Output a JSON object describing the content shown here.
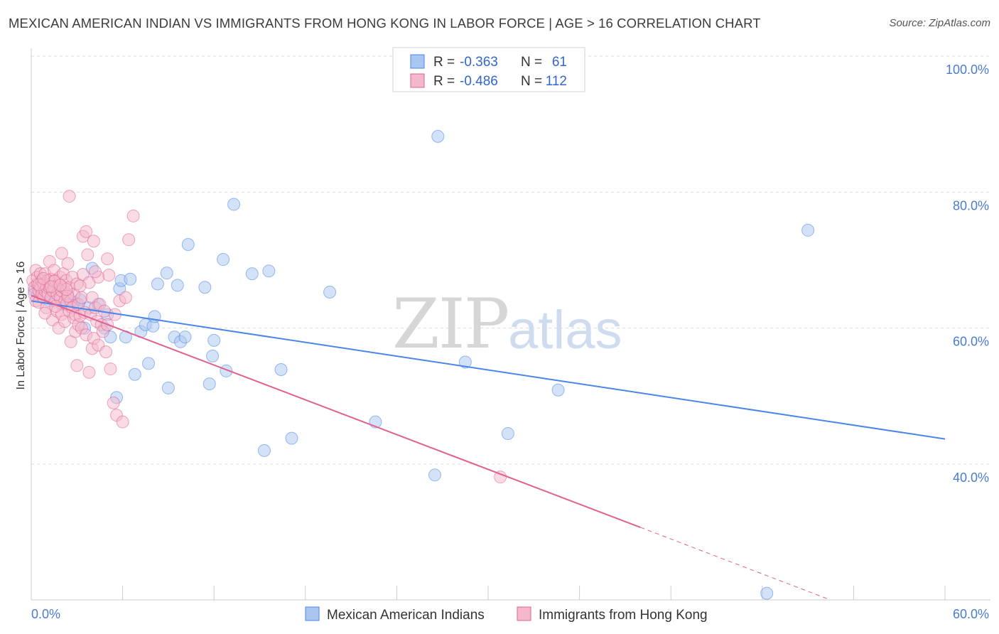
{
  "title": "MEXICAN AMERICAN INDIAN VS IMMIGRANTS FROM HONG KONG IN LABOR FORCE | AGE > 16 CORRELATION CHART",
  "source": "Source: ZipAtlas.com",
  "watermark": {
    "zip": "ZIP",
    "atlas": "atlas"
  },
  "chart_data": {
    "type": "scatter",
    "title": "MEXICAN AMERICAN INDIAN VS IMMIGRANTS FROM HONG KONG IN LABOR FORCE | AGE > 16 CORRELATION CHART",
    "xlabel": "",
    "ylabel": "In Labor Force | Age > 16",
    "xlim": [
      0,
      60
    ],
    "ylim": [
      20,
      104
    ],
    "x_tick_labels": [
      "0.0%",
      "60.0%"
    ],
    "y_ticks": [
      40,
      60,
      80,
      100
    ],
    "y_tick_labels": [
      "40.0%",
      "60.0%",
      "80.0%",
      "100.0%"
    ],
    "grid": true,
    "legend_top": [
      {
        "r_label": "R = ",
        "r_value": "-0.363",
        "n_label": "N = ",
        "n_value": "61"
      },
      {
        "r_label": "R = ",
        "r_value": "-0.486",
        "n_label": "N = ",
        "n_value": "112"
      }
    ],
    "series": [
      {
        "name": "Mexican American Indians",
        "color": "#4a86e8",
        "fill": "#a9c6f0",
        "trend": {
          "x0": 0,
          "y0": 64.0,
          "x1": 60,
          "y1": 43.7
        },
        "points": [
          [
            0.2,
            65.5
          ],
          [
            0.4,
            65
          ],
          [
            0.6,
            66
          ],
          [
            0.8,
            64.5
          ],
          [
            1.0,
            66.5
          ],
          [
            1.2,
            64
          ],
          [
            1.5,
            65.5
          ],
          [
            1.7,
            66.2
          ],
          [
            2.0,
            63.5
          ],
          [
            2.2,
            65
          ],
          [
            2.5,
            64
          ],
          [
            2.8,
            63.8
          ],
          [
            3.0,
            63.5
          ],
          [
            3.2,
            64.2
          ],
          [
            3.5,
            60
          ],
          [
            3.8,
            63
          ],
          [
            4.0,
            68.8
          ],
          [
            4.4,
            63.5
          ],
          [
            4.8,
            60
          ],
          [
            5.0,
            62
          ],
          [
            5.2,
            58.7
          ],
          [
            5.8,
            65.8
          ],
          [
            5.9,
            67
          ],
          [
            5.6,
            49.8
          ],
          [
            6.2,
            58.7
          ],
          [
            6.5,
            67.2
          ],
          [
            6.8,
            53.2
          ],
          [
            7.2,
            59.5
          ],
          [
            7.5,
            60.5
          ],
          [
            7.7,
            54.8
          ],
          [
            8.0,
            60.3
          ],
          [
            8.1,
            61.7
          ],
          [
            8.3,
            66.5
          ],
          [
            8.9,
            68.1
          ],
          [
            9.0,
            51.2
          ],
          [
            9.4,
            58.7
          ],
          [
            9.6,
            66.3
          ],
          [
            9.8,
            58
          ],
          [
            10.1,
            58.7
          ],
          [
            10.3,
            72.3
          ],
          [
            11.4,
            66
          ],
          [
            11.7,
            51.8
          ],
          [
            11.9,
            55.9
          ],
          [
            12.0,
            58.2
          ],
          [
            12.6,
            70.1
          ],
          [
            12.8,
            53.7
          ],
          [
            13.3,
            78.2
          ],
          [
            14.5,
            68
          ],
          [
            15.3,
            42
          ],
          [
            15.6,
            68.4
          ],
          [
            16.4,
            53.9
          ],
          [
            17.1,
            43.8
          ],
          [
            19.6,
            65.3
          ],
          [
            22.6,
            46.2
          ],
          [
            26.5,
            38.4
          ],
          [
            26.7,
            88.2
          ],
          [
            28.5,
            55
          ],
          [
            31.3,
            44.5
          ],
          [
            34.6,
            50.9
          ],
          [
            48.3,
            21
          ],
          [
            51.0,
            74.4
          ]
        ]
      },
      {
        "name": "Immigrants from Hong Kong",
        "color": "#e06090",
        "fill": "#f4b8cc",
        "trend": {
          "x0": 0,
          "y0": 64.8,
          "x1": 40,
          "y1": 30.7
        },
        "trend_dashed": {
          "x0": 40,
          "y0": 30.7,
          "x1": 60,
          "y1": 13.6
        },
        "points": [
          [
            0.1,
            67
          ],
          [
            0.2,
            66
          ],
          [
            0.2,
            65
          ],
          [
            0.3,
            68.5
          ],
          [
            0.3,
            64
          ],
          [
            0.4,
            66.5
          ],
          [
            0.4,
            67.5
          ],
          [
            0.5,
            65.5
          ],
          [
            0.5,
            63.8
          ],
          [
            0.6,
            66
          ],
          [
            0.6,
            68
          ],
          [
            0.7,
            65
          ],
          [
            0.7,
            67
          ],
          [
            0.8,
            66.5
          ],
          [
            0.8,
            64.5
          ],
          [
            0.9,
            65.5
          ],
          [
            0.9,
            68
          ],
          [
            1.0,
            66
          ],
          [
            1.0,
            63
          ],
          [
            1.1,
            67
          ],
          [
            1.1,
            65
          ],
          [
            1.2,
            66
          ],
          [
            1.2,
            69.8
          ],
          [
            1.3,
            64.5
          ],
          [
            1.3,
            67.2
          ],
          [
            1.4,
            65.5
          ],
          [
            1.4,
            61.2
          ],
          [
            1.5,
            66
          ],
          [
            1.5,
            68.5
          ],
          [
            1.6,
            64
          ],
          [
            1.6,
            67
          ],
          [
            1.7,
            65
          ],
          [
            1.7,
            62.5
          ],
          [
            1.8,
            66.5
          ],
          [
            1.8,
            60
          ],
          [
            1.9,
            64.5
          ],
          [
            1.9,
            67.5
          ],
          [
            2.0,
            65.5
          ],
          [
            2.0,
            62
          ],
          [
            2.1,
            66
          ],
          [
            2.1,
            68
          ],
          [
            2.2,
            64
          ],
          [
            2.2,
            61
          ],
          [
            2.3,
            67
          ],
          [
            2.3,
            63.5
          ],
          [
            2.4,
            65
          ],
          [
            2.4,
            69.5
          ],
          [
            2.5,
            62.5
          ],
          [
            2.5,
            66
          ],
          [
            2.6,
            64
          ],
          [
            2.6,
            58
          ],
          [
            2.7,
            67.5
          ],
          [
            2.7,
            63
          ],
          [
            2.8,
            65
          ],
          [
            2.8,
            61.5
          ],
          [
            2.9,
            62
          ],
          [
            2.9,
            59.5
          ],
          [
            3.0,
            66.5
          ],
          [
            3.0,
            54.5
          ],
          [
            3.1,
            63.5
          ],
          [
            3.1,
            60.5
          ],
          [
            3.2,
            61.8
          ],
          [
            3.3,
            60
          ],
          [
            3.3,
            64.5
          ],
          [
            3.4,
            67.9
          ],
          [
            3.4,
            73.5
          ],
          [
            3.5,
            62.3
          ],
          [
            3.6,
            59
          ],
          [
            3.6,
            74.2
          ],
          [
            3.7,
            70.8
          ],
          [
            3.8,
            53.5
          ],
          [
            3.8,
            66.7
          ],
          [
            3.9,
            62
          ],
          [
            4.0,
            64.5
          ],
          [
            4.0,
            57
          ],
          [
            4.1,
            72.8
          ],
          [
            4.1,
            58.5
          ],
          [
            4.2,
            63
          ],
          [
            4.3,
            61
          ],
          [
            4.4,
            67.5
          ],
          [
            4.4,
            57.5
          ],
          [
            4.5,
            63.5
          ],
          [
            4.6,
            60.5
          ],
          [
            4.7,
            59.5
          ],
          [
            4.8,
            62.5
          ],
          [
            4.9,
            56.5
          ],
          [
            5.0,
            60.5
          ],
          [
            5.2,
            54
          ],
          [
            5.4,
            49
          ],
          [
            5.5,
            62
          ],
          [
            5.6,
            47.2
          ],
          [
            5.8,
            64
          ],
          [
            6.0,
            46.2
          ],
          [
            6.2,
            64.5
          ],
          [
            6.4,
            73
          ],
          [
            6.7,
            76.5
          ],
          [
            5.0,
            70.2
          ],
          [
            5.1,
            67.8
          ],
          [
            4.2,
            68.3
          ],
          [
            3.2,
            66.2
          ],
          [
            2.4,
            64.7
          ],
          [
            1.6,
            63.2
          ],
          [
            0.9,
            62.2
          ],
          [
            2.0,
            71
          ],
          [
            2.3,
            65.7
          ],
          [
            1.5,
            66.9
          ],
          [
            0.5,
            66.4
          ],
          [
            0.8,
            67.3
          ],
          [
            1.3,
            66.1
          ],
          [
            1.9,
            66.3
          ],
          [
            2.5,
            79.4
          ],
          [
            30.8,
            38.1
          ]
        ]
      }
    ]
  }
}
